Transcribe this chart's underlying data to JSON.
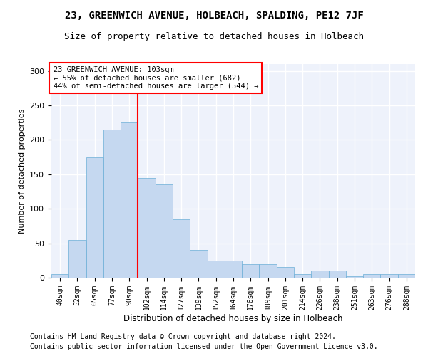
{
  "title": "23, GREENWICH AVENUE, HOLBEACH, SPALDING, PE12 7JF",
  "subtitle": "Size of property relative to detached houses in Holbeach",
  "xlabel": "Distribution of detached houses by size in Holbeach",
  "ylabel": "Number of detached properties",
  "bar_color": "#c5d8f0",
  "bar_edge_color": "#6aaed6",
  "vline_color": "red",
  "vline_index": 5,
  "annotation_text": "23 GREENWICH AVENUE: 103sqm\n← 55% of detached houses are smaller (682)\n44% of semi-detached houses are larger (544) →",
  "annotation_box_color": "white",
  "annotation_box_edge": "red",
  "categories": [
    "40sqm",
    "52sqm",
    "65sqm",
    "77sqm",
    "90sqm",
    "102sqm",
    "114sqm",
    "127sqm",
    "139sqm",
    "152sqm",
    "164sqm",
    "176sqm",
    "189sqm",
    "201sqm",
    "214sqm",
    "226sqm",
    "238sqm",
    "251sqm",
    "263sqm",
    "276sqm",
    "288sqm"
  ],
  "values": [
    5,
    55,
    175,
    215,
    225,
    145,
    135,
    85,
    40,
    25,
    25,
    20,
    20,
    15,
    5,
    10,
    10,
    2,
    5,
    5,
    5
  ],
  "ylim": [
    0,
    310
  ],
  "yticks": [
    0,
    50,
    100,
    150,
    200,
    250,
    300
  ],
  "footer1": "Contains HM Land Registry data © Crown copyright and database right 2024.",
  "footer2": "Contains public sector information licensed under the Open Government Licence v3.0.",
  "background_color": "#eef2fb",
  "title_fontsize": 10,
  "subtitle_fontsize": 9,
  "axis_fontsize": 7,
  "ylabel_fontsize": 8,
  "xlabel_fontsize": 8.5,
  "footer_fontsize": 7,
  "annotation_fontsize": 7.5
}
